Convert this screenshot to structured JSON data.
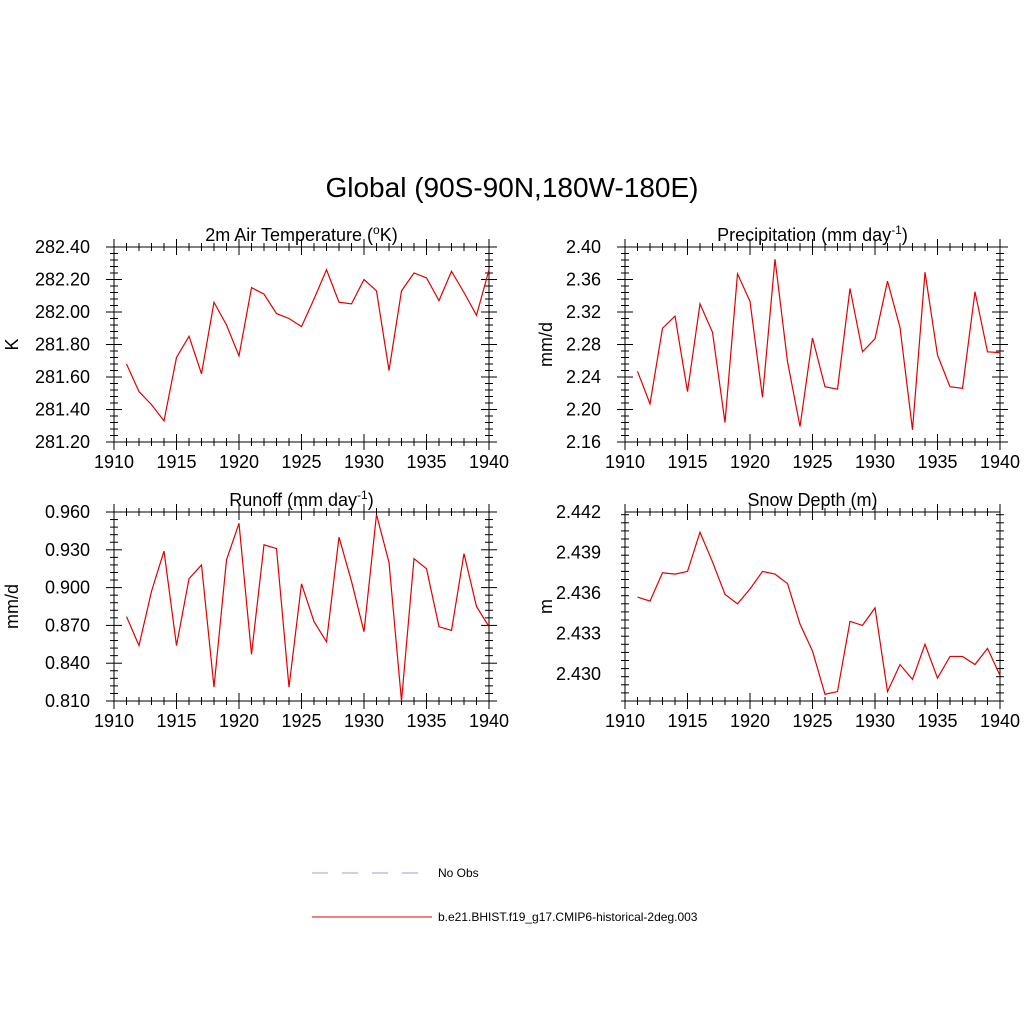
{
  "title": "Global (90S-90N,180W-180E)",
  "colors": {
    "model": "#e00000",
    "obs": "#9a9aee",
    "axis": "#000000"
  },
  "legend": [
    {
      "label": "No Obs",
      "style": "dashed",
      "color": "#9a9aee"
    },
    {
      "label": "b.e21.BHIST.f19_g17.CMIP6-historical-2deg.003",
      "style": "solid",
      "color": "#e00000"
    }
  ],
  "chart_data": [
    {
      "type": "line",
      "title_main": "2m Air Temperature (",
      "title_sup": "o",
      "title_tail": "K)",
      "ylabel": "K",
      "xlim": [
        1910,
        1940
      ],
      "ylim": [
        281.2,
        282.4
      ],
      "yticks": [
        "281.20",
        "281.40",
        "281.60",
        "281.80",
        "282.00",
        "282.20",
        "282.40"
      ],
      "xticks": [
        "1910",
        "1915",
        "1920",
        "1925",
        "1930",
        "1935",
        "1940"
      ],
      "x": [
        1911,
        1912,
        1913,
        1914,
        1915,
        1916,
        1917,
        1918,
        1919,
        1920,
        1921,
        1922,
        1923,
        1924,
        1925,
        1926,
        1927,
        1928,
        1929,
        1930,
        1931,
        1932,
        1933,
        1934,
        1935,
        1936,
        1937,
        1938,
        1939,
        1940
      ],
      "values": [
        281.68,
        281.51,
        281.43,
        281.33,
        281.72,
        281.85,
        281.62,
        282.06,
        281.92,
        281.73,
        282.15,
        282.11,
        281.99,
        281.96,
        281.91,
        282.08,
        282.26,
        282.06,
        282.05,
        282.2,
        282.13,
        281.64,
        282.13,
        282.24,
        282.21,
        282.07,
        282.25,
        282.12,
        281.98,
        282.26
      ]
    },
    {
      "type": "line",
      "title_main": "Precipitation (mm day",
      "title_sup": "-1",
      "title_tail": ")",
      "ylabel": "mm/d",
      "xlim": [
        1910,
        1940
      ],
      "ylim": [
        2.16,
        2.4
      ],
      "yticks": [
        "2.16",
        "2.20",
        "2.24",
        "2.28",
        "2.32",
        "2.36",
        "2.40"
      ],
      "xticks": [
        "1910",
        "1915",
        "1920",
        "1925",
        "1930",
        "1935",
        "1940"
      ],
      "x": [
        1911,
        1912,
        1913,
        1914,
        1915,
        1916,
        1917,
        1918,
        1919,
        1920,
        1921,
        1922,
        1923,
        1924,
        1925,
        1926,
        1927,
        1928,
        1929,
        1930,
        1931,
        1932,
        1933,
        1934,
        1935,
        1936,
        1937,
        1938,
        1939,
        1940
      ],
      "values": [
        2.247,
        2.207,
        2.3,
        2.315,
        2.222,
        2.33,
        2.295,
        2.184,
        2.367,
        2.333,
        2.215,
        2.385,
        2.259,
        2.179,
        2.288,
        2.228,
        2.225,
        2.349,
        2.271,
        2.287,
        2.358,
        2.301,
        2.175,
        2.369,
        2.267,
        2.228,
        2.226,
        2.345,
        2.271,
        2.27
      ]
    },
    {
      "type": "line",
      "title_main": "Runoff (mm day",
      "title_sup": "-1",
      "title_tail": ")",
      "ylabel": "mm/d",
      "xlim": [
        1910,
        1940
      ],
      "ylim": [
        0.81,
        0.96
      ],
      "yticks": [
        "0.810",
        "0.840",
        "0.870",
        "0.900",
        "0.930",
        "0.960"
      ],
      "xticks": [
        "1910",
        "1915",
        "1920",
        "1925",
        "1930",
        "1935",
        "1940"
      ],
      "x": [
        1911,
        1912,
        1913,
        1914,
        1915,
        1916,
        1917,
        1918,
        1919,
        1920,
        1921,
        1922,
        1923,
        1924,
        1925,
        1926,
        1927,
        1928,
        1929,
        1930,
        1931,
        1932,
        1933,
        1934,
        1935,
        1936,
        1937,
        1938,
        1939,
        1940
      ],
      "values": [
        0.877,
        0.854,
        0.897,
        0.929,
        0.854,
        0.907,
        0.918,
        0.821,
        0.922,
        0.951,
        0.847,
        0.934,
        0.931,
        0.821,
        0.903,
        0.873,
        0.857,
        0.94,
        0.905,
        0.865,
        0.958,
        0.92,
        0.81,
        0.923,
        0.915,
        0.869,
        0.866,
        0.927,
        0.885,
        0.869
      ]
    },
    {
      "type": "line",
      "title_main": "Snow Depth (m)",
      "title_sup": "",
      "title_tail": "",
      "ylabel": "m",
      "xlim": [
        1910,
        1940
      ],
      "ylim": [
        2.428,
        2.442
      ],
      "yticks": [
        "2.430",
        "2.433",
        "2.436",
        "2.439",
        "2.442"
      ],
      "xticks": [
        "1910",
        "1915",
        "1920",
        "1925",
        "1930",
        "1935",
        "1940"
      ],
      "x": [
        1911,
        1912,
        1913,
        1914,
        1915,
        1916,
        1917,
        1918,
        1919,
        1920,
        1921,
        1922,
        1923,
        1924,
        1925,
        1926,
        1927,
        1928,
        1929,
        1930,
        1931,
        1932,
        1933,
        1934,
        1935,
        1936,
        1937,
        1938,
        1939,
        1940
      ],
      "values": [
        2.4357,
        2.4354,
        2.4375,
        2.4374,
        2.4376,
        2.4405,
        2.4383,
        2.4359,
        2.4352,
        2.4363,
        2.4376,
        2.4374,
        2.4367,
        2.4337,
        2.4317,
        2.4285,
        2.4287,
        2.4339,
        2.4336,
        2.4349,
        2.4287,
        2.4307,
        2.4296,
        2.4322,
        2.4297,
        2.4313,
        2.4313,
        2.4307,
        2.4319,
        2.4299
      ]
    }
  ]
}
